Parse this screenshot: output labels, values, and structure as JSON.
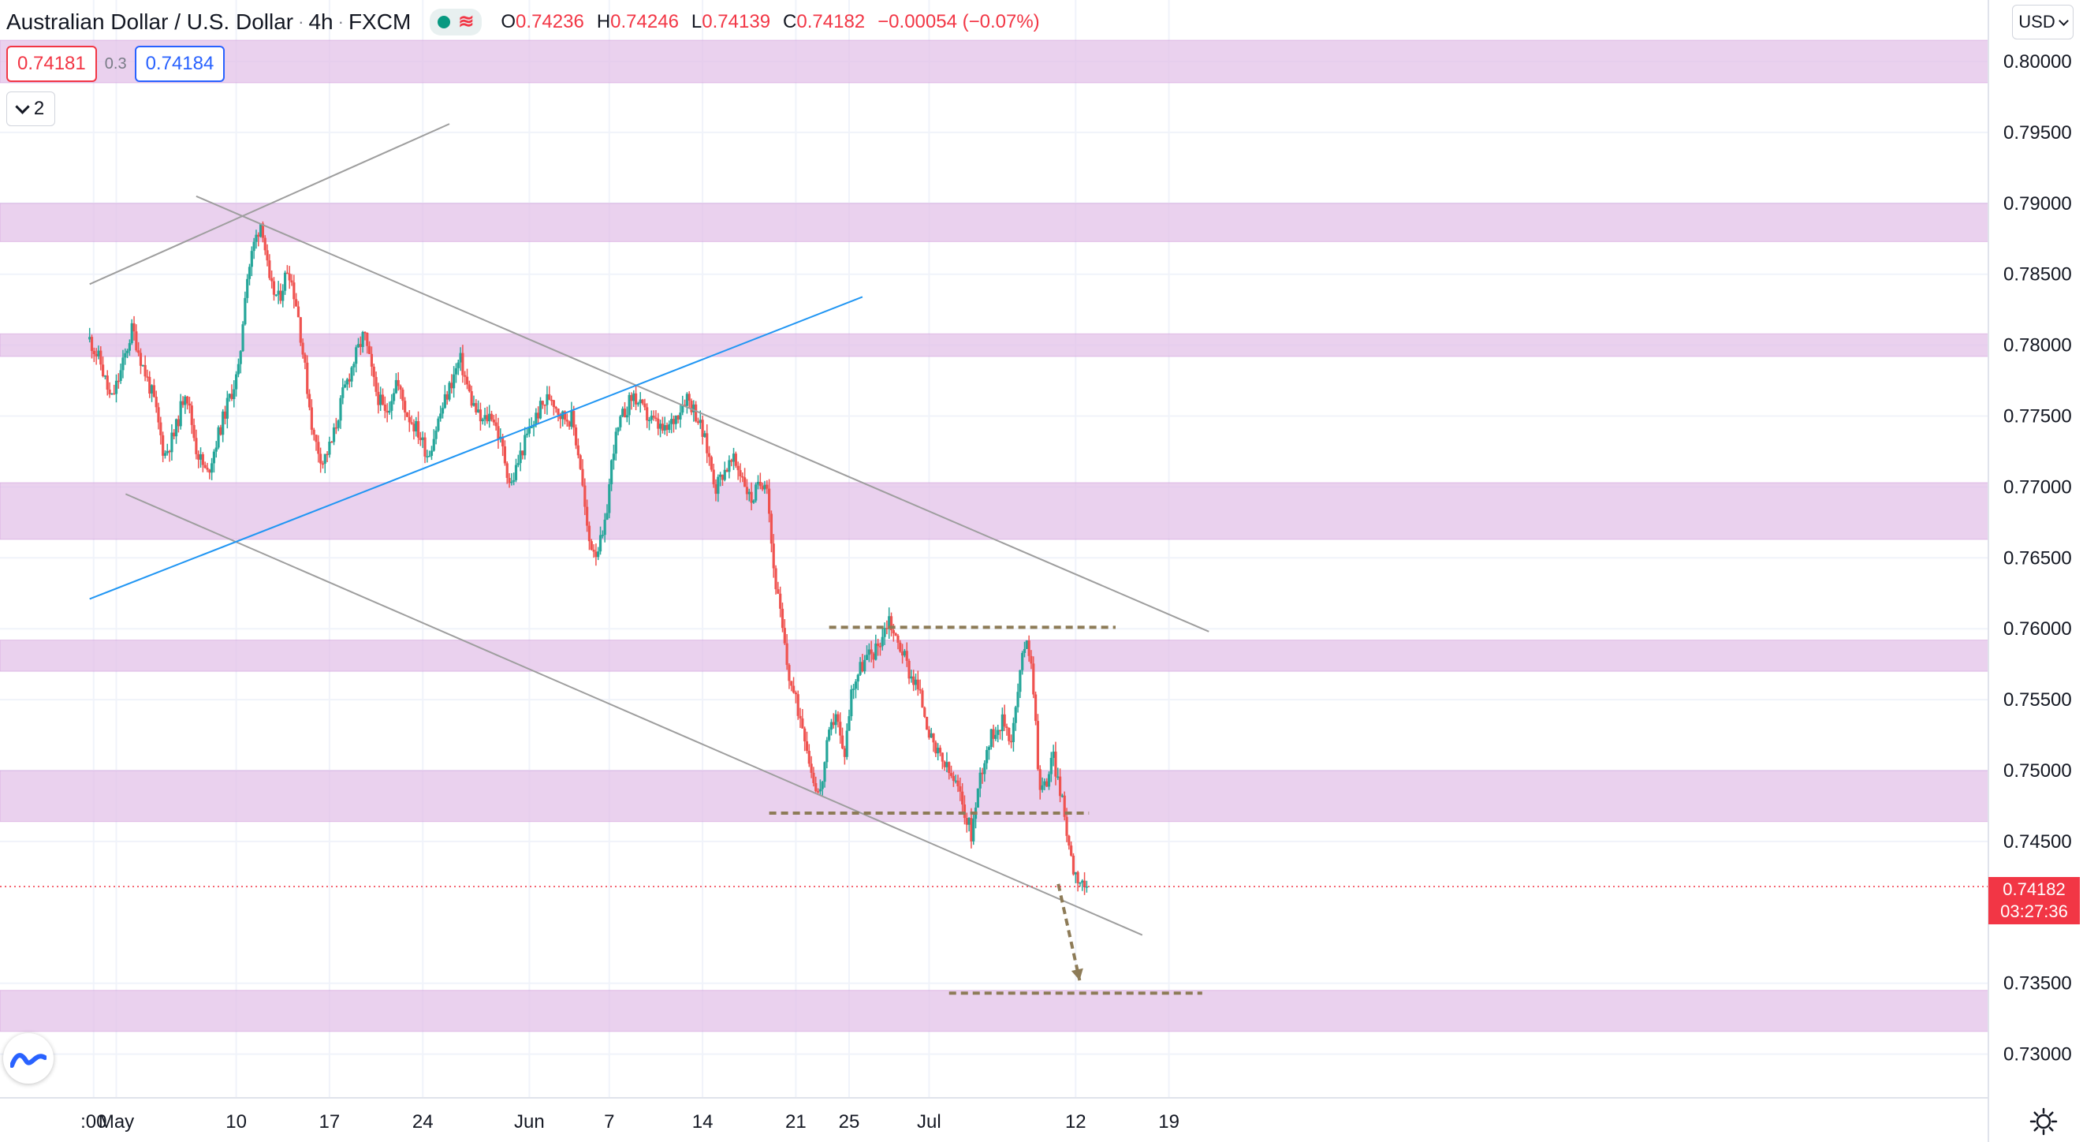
{
  "header": {
    "symbol": "Australian Dollar / U.S. Dollar",
    "interval": "4h",
    "exchange": "FXCM",
    "ohlc": {
      "open_label": "O",
      "open": "0.74236",
      "high_label": "H",
      "high": "0.74246",
      "low_label": "L",
      "low": "0.74139",
      "close_label": "C",
      "close": "0.74182",
      "change": "−0.00054 (−0.07%)"
    }
  },
  "trade": {
    "sell_price": "0.74181",
    "spread": "0.3",
    "buy_price": "0.74184"
  },
  "indicators_toggle": {
    "count": "2"
  },
  "currency": {
    "label": "USD"
  },
  "last_price": {
    "price": "0.74182",
    "countdown": "03:27:36"
  },
  "colors": {
    "up": "#26a69a",
    "down": "#ef5350",
    "zone": "#e1bee7",
    "channel": "#9e9e9e",
    "trendline": "#2196f3",
    "level": "#8d7b57",
    "price": "#f23645"
  },
  "chart_data": {
    "type": "candlestick",
    "ylim": [
      0.7265,
      0.8035
    ],
    "y_ticks": [
      "0.80000",
      "0.79500",
      "0.79000",
      "0.78500",
      "0.78000",
      "0.77500",
      "0.77000",
      "0.76500",
      "0.76000",
      "0.75500",
      "0.75000",
      "0.74500",
      "0.73500",
      "0.73000"
    ],
    "x_ticks": [
      {
        "label": ":00",
        "day": -0.7
      },
      {
        "label": "May",
        "day": 1
      },
      {
        "label": "10",
        "day": 10
      },
      {
        "label": "17",
        "day": 17
      },
      {
        "label": "24",
        "day": 24
      },
      {
        "label": "Jun",
        "day": 32
      },
      {
        "label": "7",
        "day": 38
      },
      {
        "label": "14",
        "day": 45
      },
      {
        "label": "21",
        "day": 52
      },
      {
        "label": "25",
        "day": 56
      },
      {
        "label": "Jul",
        "day": 62
      },
      {
        "label": "12",
        "day": 73
      },
      {
        "label": "19",
        "day": 80
      }
    ],
    "zones": [
      {
        "from": 0.7985,
        "to": 0.8015
      },
      {
        "from": 0.7873,
        "to": 0.79
      },
      {
        "from": 0.7792,
        "to": 0.7808
      },
      {
        "from": 0.7663,
        "to": 0.7703
      },
      {
        "from": 0.757,
        "to": 0.7592
      },
      {
        "from": 0.7464,
        "to": 0.75
      },
      {
        "from": 0.7316,
        "to": 0.7345
      }
    ],
    "lines": [
      {
        "kind": "channel",
        "from": [
          -1,
          0.7843
        ],
        "to": [
          26,
          0.7956
        ]
      },
      {
        "kind": "channel",
        "from": [
          7,
          0.7905
        ],
        "to": [
          83,
          0.7598
        ]
      },
      {
        "kind": "channel",
        "from": [
          1.7,
          0.7695
        ],
        "to": [
          78,
          0.7384
        ]
      },
      {
        "kind": "trend",
        "from": [
          -1,
          0.7621
        ],
        "to": [
          57,
          0.7834
        ]
      },
      {
        "kind": "level",
        "from": [
          54.5,
          0.7601
        ],
        "to": [
          76,
          0.7601
        ]
      },
      {
        "kind": "level",
        "from": [
          50,
          0.747
        ],
        "to": [
          74,
          0.747
        ]
      },
      {
        "kind": "level",
        "from": [
          63.5,
          0.7343
        ],
        "to": [
          82.5,
          0.7343
        ]
      },
      {
        "kind": "arrow",
        "from": [
          71.7,
          0.742
        ],
        "to": [
          73.3,
          0.7352
        ]
      }
    ],
    "last_price": 0.74182,
    "price_path": [
      [
        -1.0,
        0.7804
      ],
      [
        -0.2,
        0.7788
      ],
      [
        0.6,
        0.776
      ],
      [
        1.4,
        0.7783
      ],
      [
        2.2,
        0.7812
      ],
      [
        3.0,
        0.7785
      ],
      [
        3.8,
        0.7762
      ],
      [
        4.6,
        0.7722
      ],
      [
        5.4,
        0.7738
      ],
      [
        6.2,
        0.777
      ],
      [
        7.0,
        0.7727
      ],
      [
        7.8,
        0.7708
      ],
      [
        8.6,
        0.7735
      ],
      [
        9.4,
        0.776
      ],
      [
        10.2,
        0.7782
      ],
      [
        10.7,
        0.7842
      ],
      [
        11.3,
        0.787
      ],
      [
        11.9,
        0.7889
      ],
      [
        12.5,
        0.7842
      ],
      [
        13.2,
        0.7832
      ],
      [
        13.9,
        0.7856
      ],
      [
        14.6,
        0.7825
      ],
      [
        15.2,
        0.778
      ],
      [
        15.8,
        0.7735
      ],
      [
        16.5,
        0.7718
      ],
      [
        17.2,
        0.7732
      ],
      [
        18.0,
        0.7765
      ],
      [
        18.8,
        0.7788
      ],
      [
        19.6,
        0.7808
      ],
      [
        20.4,
        0.777
      ],
      [
        21.2,
        0.775
      ],
      [
        22.0,
        0.7775
      ],
      [
        22.8,
        0.7752
      ],
      [
        23.6,
        0.774
      ],
      [
        24.4,
        0.7722
      ],
      [
        25.2,
        0.7748
      ],
      [
        26.0,
        0.777
      ],
      [
        26.8,
        0.779
      ],
      [
        27.6,
        0.7762
      ],
      [
        28.4,
        0.7745
      ],
      [
        29.2,
        0.7752
      ],
      [
        30.0,
        0.7726
      ],
      [
        30.6,
        0.77
      ],
      [
        31.3,
        0.7722
      ],
      [
        32.0,
        0.774
      ],
      [
        32.8,
        0.7755
      ],
      [
        33.6,
        0.7765
      ],
      [
        34.4,
        0.775
      ],
      [
        35.2,
        0.7748
      ],
      [
        35.8,
        0.7718
      ],
      [
        36.4,
        0.7663
      ],
      [
        37.0,
        0.7655
      ],
      [
        37.6,
        0.7665
      ],
      [
        38.3,
        0.7728
      ],
      [
        39.0,
        0.775
      ],
      [
        39.8,
        0.7765
      ],
      [
        40.6,
        0.7752
      ],
      [
        41.4,
        0.7745
      ],
      [
        42.2,
        0.7738
      ],
      [
        43.0,
        0.775
      ],
      [
        43.8,
        0.7765
      ],
      [
        44.6,
        0.775
      ],
      [
        45.3,
        0.7728
      ],
      [
        46.0,
        0.77
      ],
      [
        46.6,
        0.7712
      ],
      [
        47.3,
        0.7718
      ],
      [
        48.0,
        0.7708
      ],
      [
        48.6,
        0.769
      ],
      [
        49.2,
        0.77
      ],
      [
        49.8,
        0.7708
      ],
      [
        50.3,
        0.7645
      ],
      [
        50.8,
        0.7612
      ],
      [
        51.4,
        0.757
      ],
      [
        52.0,
        0.7548
      ],
      [
        52.6,
        0.753
      ],
      [
        53.2,
        0.7498
      ],
      [
        53.8,
        0.7482
      ],
      [
        54.4,
        0.752
      ],
      [
        55.0,
        0.7542
      ],
      [
        55.6,
        0.7508
      ],
      [
        56.2,
        0.7558
      ],
      [
        56.8,
        0.7572
      ],
      [
        57.4,
        0.758
      ],
      [
        58.0,
        0.7585
      ],
      [
        58.6,
        0.7598
      ],
      [
        59.0,
        0.7608
      ],
      [
        59.5,
        0.7592
      ],
      [
        60.0,
        0.7585
      ],
      [
        60.5,
        0.757
      ],
      [
        61.1,
        0.756
      ],
      [
        61.7,
        0.754
      ],
      [
        62.3,
        0.7515
      ],
      [
        62.9,
        0.7508
      ],
      [
        63.5,
        0.7498
      ],
      [
        64.1,
        0.7488
      ],
      [
        64.7,
        0.747
      ],
      [
        65.2,
        0.7455
      ],
      [
        65.8,
        0.7495
      ],
      [
        66.4,
        0.7518
      ],
      [
        67.0,
        0.753
      ],
      [
        67.6,
        0.7535
      ],
      [
        68.2,
        0.7522
      ],
      [
        68.8,
        0.7565
      ],
      [
        69.3,
        0.7598
      ],
      [
        69.8,
        0.7565
      ],
      [
        70.3,
        0.7485
      ],
      [
        70.8,
        0.7492
      ],
      [
        71.3,
        0.751
      ],
      [
        71.8,
        0.7488
      ],
      [
        72.3,
        0.746
      ],
      [
        72.8,
        0.7432
      ],
      [
        73.2,
        0.7425
      ],
      [
        73.6,
        0.742
      ],
      [
        73.9,
        0.7418
      ]
    ]
  }
}
